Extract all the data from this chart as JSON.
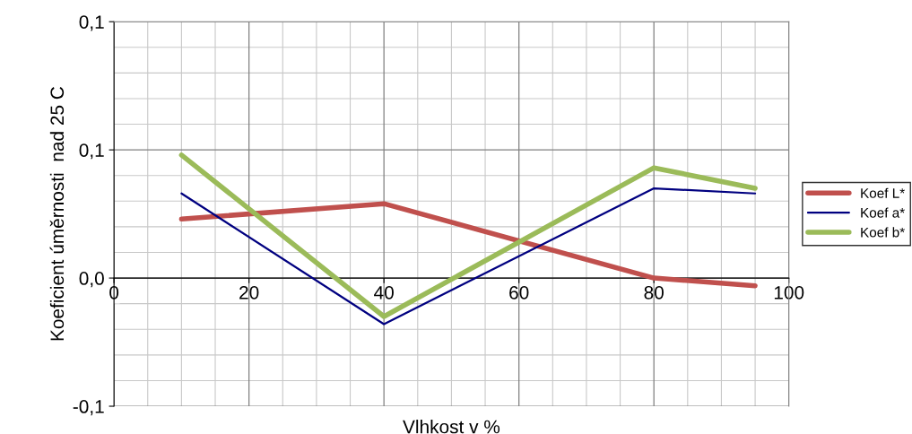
{
  "chart_data": {
    "type": "line",
    "xlabel": "Vlhkost v %",
    "ylabel": "Koeficient úměrnosti  nad 25 C",
    "x": [
      10,
      40,
      80,
      95
    ],
    "series": [
      {
        "name": "Koef L*",
        "color": "#c0504d",
        "values": [
          0.023,
          0.029,
          0.0,
          -0.003
        ]
      },
      {
        "name": "Koef a*",
        "color": "#000080",
        "values": [
          0.033,
          -0.018,
          0.035,
          0.033
        ]
      },
      {
        "name": "Koef b*",
        "color": "#9bbb59",
        "values": [
          0.048,
          -0.015,
          0.043,
          0.035
        ]
      }
    ],
    "xlim": [
      0,
      100
    ],
    "xticks": [
      0,
      20,
      40,
      60,
      80,
      100
    ],
    "ylim": [
      -0.05,
      0.1
    ],
    "yticks": [
      {
        "value": -0.05,
        "label": "-0,1"
      },
      {
        "value": 0,
        "label": "0,0"
      },
      {
        "value": 0.05,
        "label": "0,1"
      },
      {
        "value": 0.1,
        "label": "0,1"
      }
    ],
    "grid": true,
    "legend": "right",
    "marker": "none",
    "line_style": "solid"
  }
}
